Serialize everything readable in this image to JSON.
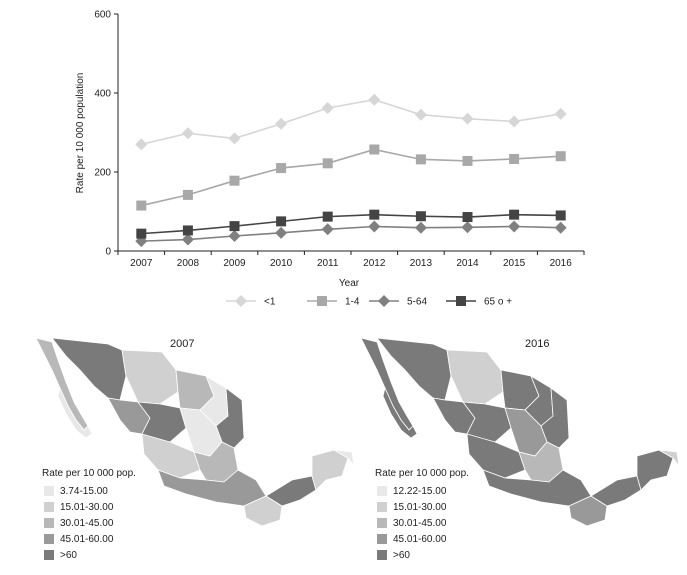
{
  "chart_data": {
    "type": "line",
    "xlabel": "Year",
    "ylabel": "Rate per 10 000 population",
    "ylim": [
      0,
      600
    ],
    "yticks": [
      0,
      200,
      400,
      600
    ],
    "categories": [
      "2007",
      "2008",
      "2009",
      "2010",
      "2011",
      "2012",
      "2013",
      "2014",
      "2015",
      "2016"
    ],
    "legend_position": "bottom",
    "grid": false,
    "series": [
      {
        "name": "<1",
        "marker": "diamond",
        "color": "#d6d6d6",
        "values": [
          270,
          298,
          285,
          322,
          362,
          383,
          345,
          335,
          328,
          347
        ]
      },
      {
        "name": "1-4",
        "marker": "square",
        "color": "#a8a8a8",
        "values": [
          115,
          142,
          178,
          210,
          222,
          257,
          232,
          228,
          233,
          240
        ]
      },
      {
        "name": "5-64",
        "marker": "diamond",
        "color": "#808080",
        "values": [
          25,
          29,
          38,
          46,
          55,
          62,
          59,
          60,
          62,
          59
        ]
      },
      {
        "name": "65 o +",
        "marker": "square",
        "color": "#444444",
        "values": [
          44,
          52,
          63,
          75,
          87,
          92,
          88,
          86,
          92,
          90
        ]
      }
    ]
  },
  "maps": [
    {
      "title": "2007",
      "legend_title": "Rate per 10 000 pop.",
      "legend": [
        {
          "label": "3.74-15.00",
          "color": "#e8e8e8"
        },
        {
          "label": "15.01-30.00",
          "color": "#d0d0d0"
        },
        {
          "label": "30.01-45.00",
          "color": "#b8b8b8"
        },
        {
          "label": "45.01-60.00",
          "color": "#999999"
        },
        {
          "label": ">60",
          "color": "#7a7a7a"
        }
      ]
    },
    {
      "title": "2016",
      "legend_title": "Rate per 10 000 pop.",
      "legend": [
        {
          "label": "12.22-15.00",
          "color": "#e8e8e8"
        },
        {
          "label": "15.01-30.00",
          "color": "#d0d0d0"
        },
        {
          "label": "30.01-45.00",
          "color": "#b8b8b8"
        },
        {
          "label": "45.01-60.00",
          "color": "#999999"
        },
        {
          "label": ">60",
          "color": "#7a7a7a"
        }
      ]
    }
  ]
}
